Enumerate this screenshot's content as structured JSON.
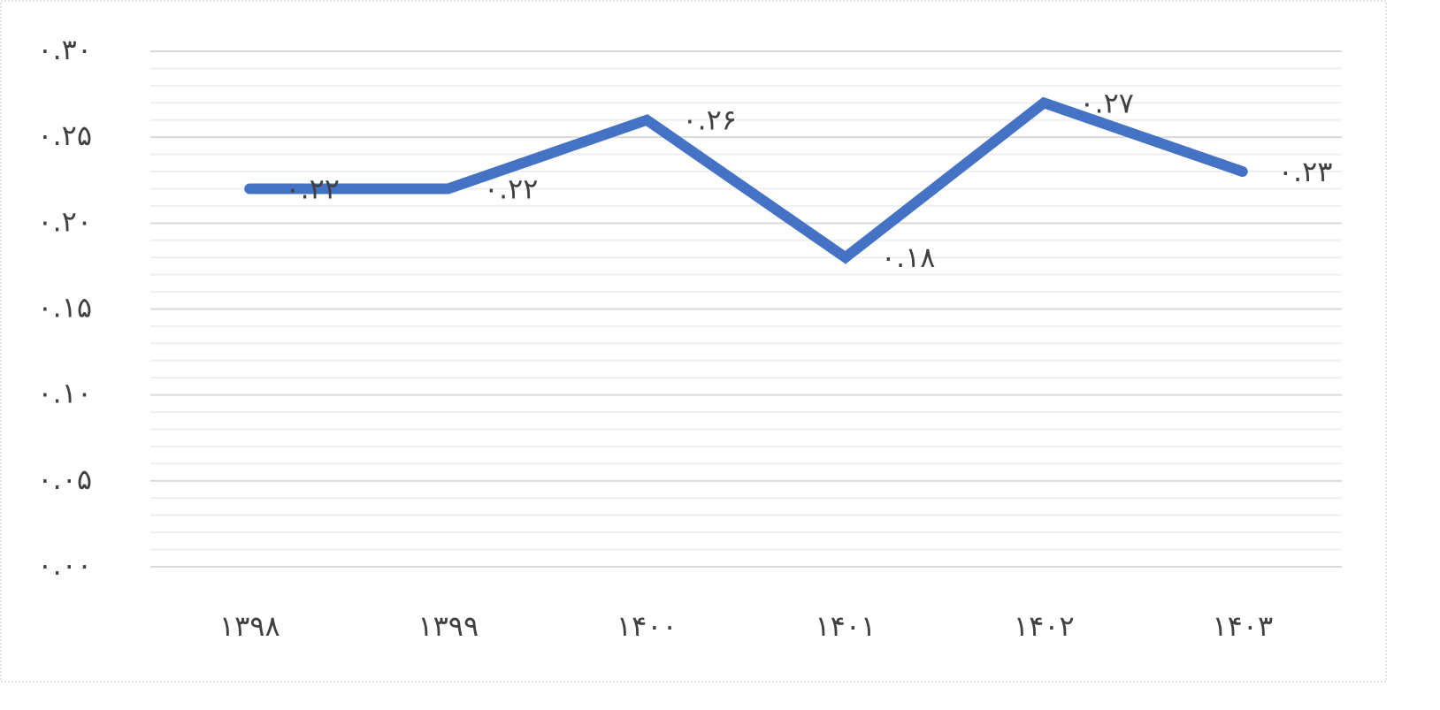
{
  "chart_data": {
    "type": "line",
    "categories": [
      "۱۳۹۸",
      "۱۳۹۹",
      "۱۴۰۰",
      "۱۴۰۱",
      "۱۴۰۲",
      "۱۴۰۳"
    ],
    "values": [
      0.22,
      0.22,
      0.26,
      0.18,
      0.27,
      0.23
    ],
    "value_labels": [
      "۰.۲۲",
      "۰.۲۲",
      "۰.۲۶",
      "۰.۱۸",
      "۰.۲۷",
      "۰.۲۳"
    ],
    "color": "#4472c4",
    "ylim": [
      0,
      0.3
    ],
    "yticks": [
      {
        "value": 0,
        "label": "۰.۰۰"
      },
      {
        "value": 0.05,
        "label": "۰.۰۵"
      },
      {
        "value": 0.1,
        "label": "۰.۱۰"
      },
      {
        "value": 0.15,
        "label": "۰.۱۵"
      },
      {
        "value": 0.2,
        "label": "۰.۲۰"
      },
      {
        "value": 0.25,
        "label": "۰.۲۵"
      },
      {
        "value": 0.3,
        "label": "۰.۳۰"
      }
    ],
    "minor_yticks": [
      0.01,
      0.02,
      0.03,
      0.04,
      0.06,
      0.07,
      0.08,
      0.09,
      0.11,
      0.12,
      0.13,
      0.14,
      0.16,
      0.17,
      0.18,
      0.19,
      0.21,
      0.22,
      0.23,
      0.24,
      0.26,
      0.27,
      0.28,
      0.29
    ],
    "grid": true
  }
}
